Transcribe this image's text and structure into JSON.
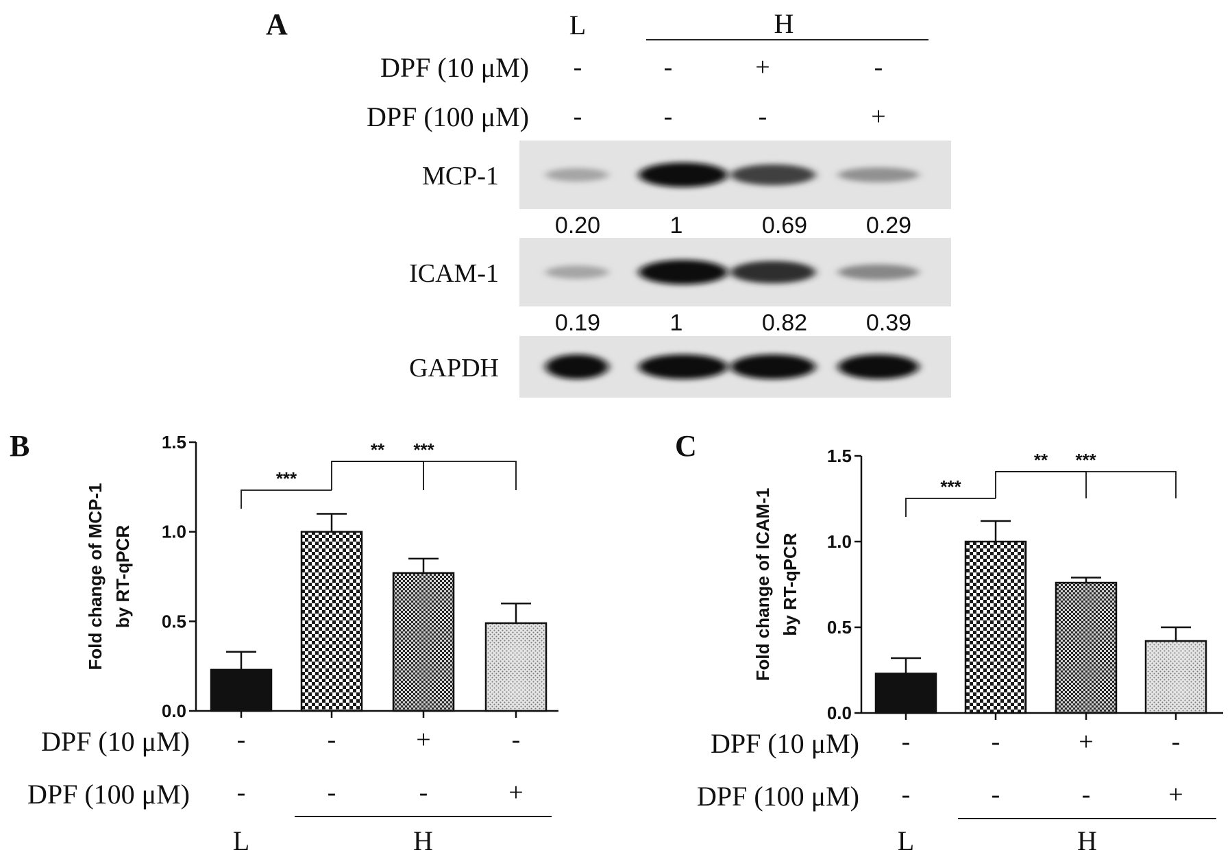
{
  "panel_a": {
    "letter": "A",
    "group_low": "L",
    "group_high": "H",
    "rows": [
      {
        "label": "DPF (10 μM)",
        "marks": [
          "-",
          "-",
          "+",
          "-"
        ]
      },
      {
        "label": "DPF (100 μM)",
        "marks": [
          "-",
          "-",
          "-",
          "+"
        ]
      }
    ],
    "blots": [
      {
        "label": "MCP-1",
        "intensity": [
          0.25,
          1,
          0.75,
          0.35
        ],
        "quant": [
          "0.20",
          "1",
          "0.69",
          "0.29"
        ]
      },
      {
        "label": "ICAM-1",
        "intensity": [
          0.25,
          1,
          0.85,
          0.4
        ],
        "quant": [
          "0.19",
          "1",
          "0.82",
          "0.39"
        ]
      },
      {
        "label": "GAPDH",
        "intensity": [
          1,
          1,
          1,
          1
        ],
        "quant": []
      }
    ]
  },
  "chart_data": [
    {
      "type": "bar",
      "panel": "B",
      "ylabel": "Fold change of MCP-1\nby RT-qPCR",
      "ylabel_lines": [
        "Fold change of MCP-1",
        "by RT-qPCR"
      ],
      "ylim": [
        0,
        1.5
      ],
      "yticks": [
        "0.0",
        "0.5",
        "1.0",
        "1.5"
      ],
      "categories": [
        "L",
        "H",
        "H + DPF (10 μM)",
        "H + DPF (100 μM)"
      ],
      "values": [
        0.23,
        1.0,
        0.77,
        0.49
      ],
      "errors": [
        0.1,
        0.1,
        0.08,
        0.11
      ],
      "patterns": [
        "solid",
        "checker-large",
        "checker-small",
        "dots"
      ],
      "significance": [
        {
          "from": 0,
          "to": 1,
          "label": "***"
        },
        {
          "from": 1,
          "to": 2,
          "label": "**"
        },
        {
          "from": 1,
          "to": 3,
          "label": "***"
        }
      ],
      "row1_label": "DPF (10 μM)",
      "row1": [
        "-",
        "-",
        "+",
        "-"
      ],
      "row2_label": "DPF (100 μM)",
      "row2": [
        "-",
        "-",
        "-",
        "+"
      ],
      "group_low": "L",
      "group_high": "H"
    },
    {
      "type": "bar",
      "panel": "C",
      "ylabel": "Fold change of ICAM-1\nby RT-qPCR",
      "ylabel_lines": [
        "Fold change of ICAM-1",
        "by RT-qPCR"
      ],
      "ylim": [
        0,
        1.5
      ],
      "yticks": [
        "0.0",
        "0.5",
        "1.0",
        "1.5"
      ],
      "categories": [
        "L",
        "H",
        "H + DPF (10 μM)",
        "H + DPF (100 μM)"
      ],
      "values": [
        0.23,
        1.0,
        0.76,
        0.42
      ],
      "errors": [
        0.09,
        0.12,
        0.03,
        0.08
      ],
      "patterns": [
        "solid",
        "checker-large",
        "checker-small",
        "dots"
      ],
      "significance": [
        {
          "from": 0,
          "to": 1,
          "label": "***"
        },
        {
          "from": 1,
          "to": 2,
          "label": "**"
        },
        {
          "from": 1,
          "to": 3,
          "label": "***"
        }
      ],
      "row1_label": "DPF (10 μM)",
      "row1": [
        "-",
        "-",
        "+",
        "-"
      ],
      "row2_label": "DPF (100 μM)",
      "row2": [
        "-",
        "-",
        "-",
        "+"
      ],
      "group_low": "L",
      "group_high": "H"
    }
  ]
}
